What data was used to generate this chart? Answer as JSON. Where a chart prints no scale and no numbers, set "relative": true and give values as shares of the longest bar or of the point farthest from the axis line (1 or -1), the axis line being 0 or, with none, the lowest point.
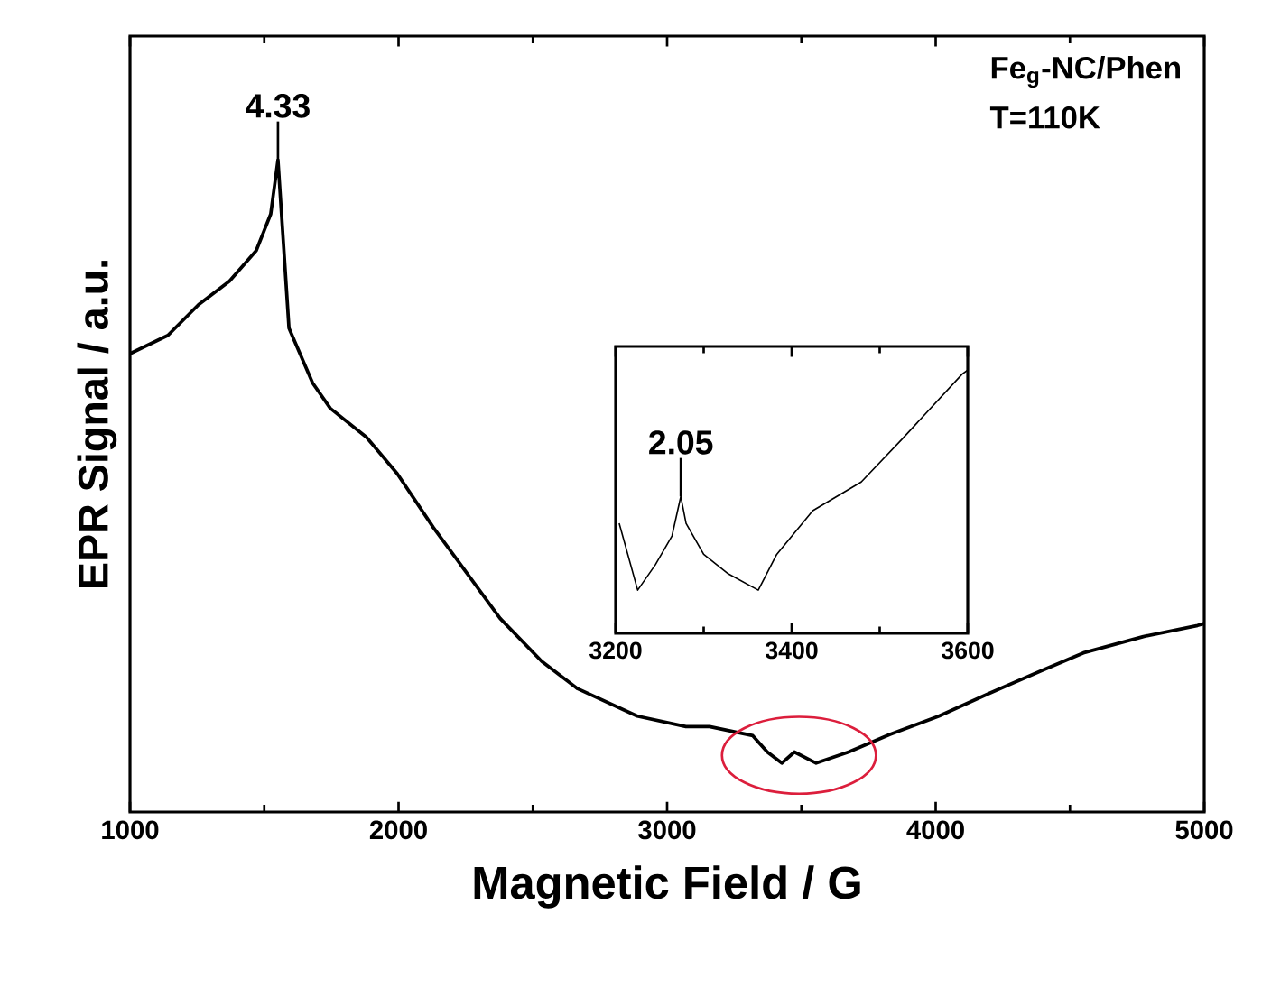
{
  "chart_data": [
    {
      "type": "line",
      "relative": true,
      "xlabel": "Magnetic Field / G",
      "ylabel": "EPR Signal / a.u.",
      "xlim": [
        1000,
        5000
      ],
      "xticks": [
        1000,
        2000,
        3000,
        4000,
        5000
      ],
      "grid": false,
      "marker": "none",
      "line_style": "solid",
      "annotations": [
        {
          "text": "4.33",
          "x": 1551,
          "y": 1
        },
        "Fe$_{g}$-NC/Phen",
        "T=110K"
      ],
      "series": [
        {
          "color": "#000000",
          "x": [
            1000,
            1141,
            1255,
            1370,
            1470,
            1524,
            1551,
            1592,
            1680,
            1746,
            1880,
            1995,
            2130,
            2264,
            2378,
            2533,
            2667,
            2889,
            3070,
            3158,
            3319,
            3373,
            3427,
            3474,
            3555,
            3676,
            3830,
            4012,
            4194,
            4395,
            4550,
            4773,
            4975,
            5000
          ],
          "values": [
            0.703,
            0.731,
            0.778,
            0.814,
            0.861,
            0.917,
            1,
            0.742,
            0.658,
            0.619,
            0.575,
            0.519,
            0.436,
            0.361,
            0.297,
            0.231,
            0.189,
            0.147,
            0.131,
            0.131,
            0.117,
            0.092,
            0.075,
            0.092,
            0.075,
            0.092,
            0.119,
            0.147,
            0.181,
            0.217,
            0.244,
            0.269,
            0.286,
            0.289
          ]
        }
      ]
    },
    {
      "type": "line",
      "relative": true,
      "xlim": [
        3200,
        3600
      ],
      "xticks": [
        3200,
        3400,
        3600
      ],
      "grid": false,
      "marker": "none",
      "line_style": "solid",
      "annotations": [
        {
          "text": "2.05",
          "x": 3274,
          "y": 0.52
        }
      ],
      "series": [
        {
          "color": "#000000",
          "x": [
            3204,
            3225,
            3245,
            3264,
            3274,
            3280,
            3300,
            3328,
            3362,
            3383,
            3424,
            3479,
            3526,
            3594,
            3600
          ],
          "values": [
            0.418,
            0.164,
            0.26,
            0.37,
            0.52,
            0.418,
            0.3,
            0.226,
            0.164,
            0.3,
            0.466,
            0.575,
            0.74,
            0.986,
            1
          ]
        }
      ]
    }
  ]
}
